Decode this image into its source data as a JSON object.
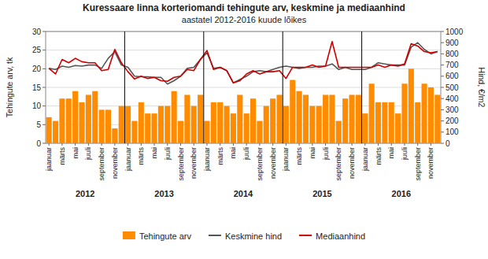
{
  "chart_data": {
    "type": "bar",
    "title": "Kuressaare linna korteriomandi tehingute arv, keskmine ja mediaanhind",
    "subtitle": "aastatel 2012-2016 kuude lõikes",
    "y_label": "Tehingute arv, tk",
    "y2_label": "Hind, €/m2",
    "categories": [
      "jaanuar",
      null,
      "märts",
      null,
      "mai",
      null,
      "juuli",
      null,
      "september",
      null,
      "november",
      null,
      "jaanuar",
      null,
      "märts",
      null,
      "mai",
      null,
      "juuli",
      null,
      "september",
      null,
      "november",
      null,
      "jaanuar",
      null,
      "märts",
      null,
      "mai",
      null,
      "juuli",
      null,
      "september",
      null,
      "november",
      null,
      "jaanuar",
      null,
      "märts",
      null,
      "mai",
      null,
      "juuli",
      null,
      "september",
      null,
      "november",
      null,
      "jaanuar",
      null,
      "märts",
      null,
      "mai",
      null,
      "juuli",
      null,
      "september",
      null,
      "november",
      null
    ],
    "annotations": [
      "2012",
      "2013",
      "2014",
      "2015",
      "2016"
    ],
    "series": [
      {
        "name": "Tehingute arv",
        "type": "bar",
        "color": "#FF8C00",
        "values": [
          7,
          6,
          12,
          12,
          14,
          11,
          13,
          14,
          9,
          9,
          4,
          10,
          10,
          6,
          11,
          8,
          8,
          10,
          10,
          14,
          6,
          13,
          10,
          13,
          6,
          11,
          11,
          10,
          8,
          13,
          8,
          12,
          6,
          10,
          12,
          13,
          10,
          17,
          14,
          13,
          10,
          10,
          13,
          13,
          6,
          12,
          13,
          13,
          8,
          16,
          11,
          11,
          11,
          8,
          16,
          20,
          11,
          16,
          15,
          13
        ]
      },
      {
        "name": "Keskmine hind",
        "type": "line",
        "axis": "y2",
        "color": "#555555",
        "values": [
          670,
          660,
          690,
          680,
          695,
          690,
          700,
          700,
          670,
          760,
          820,
          700,
          680,
          600,
          595,
          595,
          590,
          590,
          530,
          560,
          600,
          670,
          680,
          750,
          810,
          670,
          680,
          650,
          540,
          570,
          600,
          640,
          650,
          640,
          660,
          680,
          690,
          680,
          670,
          680,
          680,
          690,
          690,
          710,
          660,
          680,
          660,
          660,
          660,
          680,
          720,
          710,
          700,
          700,
          700,
          860,
          900,
          840,
          800,
          820
        ]
      },
      {
        "name": "Mediaanhind",
        "type": "line",
        "axis": "y2",
        "color": "#CC0000",
        "values": [
          670,
          620,
          750,
          720,
          760,
          730,
          720,
          720,
          650,
          660,
          840,
          720,
          640,
          575,
          600,
          580,
          590,
          560,
          555,
          590,
          600,
          660,
          650,
          750,
          830,
          660,
          680,
          650,
          540,
          560,
          620,
          650,
          620,
          640,
          640,
          650,
          580,
          680,
          680,
          680,
          700,
          680,
          690,
          910,
          680,
          680,
          680,
          680,
          680,
          680,
          700,
          680,
          700,
          690,
          710,
          890,
          870,
          820,
          810,
          820
        ]
      }
    ],
    "ylim": [
      0,
      30
    ],
    "yticks": [
      0,
      5,
      10,
      15,
      20,
      25,
      30
    ],
    "y2lim": [
      0,
      1000
    ],
    "y2ticks": [
      0,
      100,
      200,
      300,
      400,
      500,
      600,
      700,
      800,
      900,
      1000
    ],
    "grid": true,
    "legend": "bottom"
  }
}
